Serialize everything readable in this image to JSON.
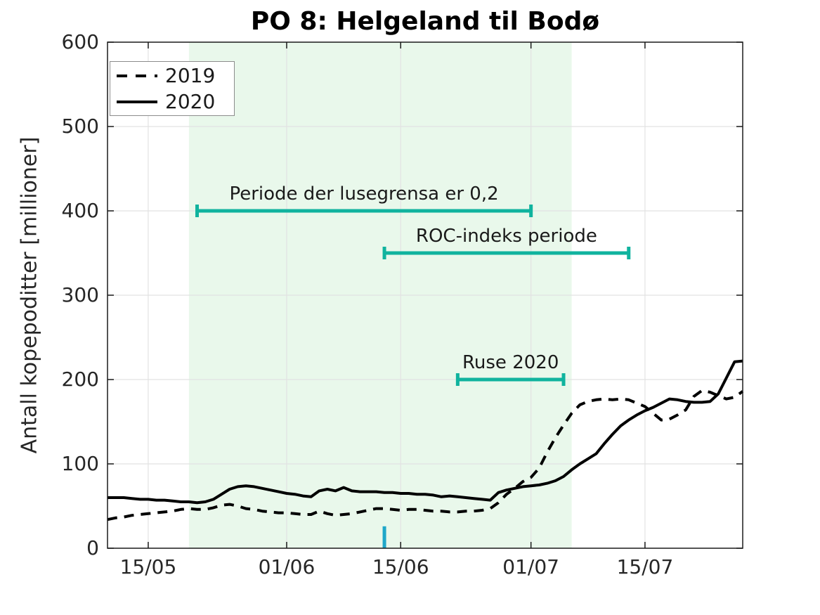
{
  "chart": {
    "title": "PO 8: Helgeland til Bodø",
    "ylabel": "Antall kopepoditter [millioner]"
  },
  "chart_data": {
    "type": "line",
    "title": "PO 8: Helgeland til Bodø",
    "xlabel": "",
    "ylabel": "Antall kopepoditter [millioner]",
    "ylim": [
      0,
      600
    ],
    "grid": true,
    "x_axis": {
      "unit": "day",
      "start_date": "10/05",
      "end_date": "27/07",
      "num_days": 78
    },
    "x_ticks": [
      {
        "label": "15/05",
        "day": 5
      },
      {
        "label": "01/06",
        "day": 22
      },
      {
        "label": "15/06",
        "day": 36
      },
      {
        "label": "01/07",
        "day": 52
      },
      {
        "label": "15/07",
        "day": 66
      }
    ],
    "y_ticks": [
      {
        "label": "0",
        "value": 0
      },
      {
        "label": "100",
        "value": 100
      },
      {
        "label": "200",
        "value": 200
      },
      {
        "label": "300",
        "value": 300
      },
      {
        "label": "400",
        "value": 400
      },
      {
        "label": "500",
        "value": 500
      },
      {
        "label": "600",
        "value": 600
      }
    ],
    "series": [
      {
        "name": "2019",
        "style": "dashed",
        "color": "#000000",
        "values": [
          34,
          36,
          37,
          39,
          40,
          41,
          42,
          43,
          44,
          46,
          47,
          46,
          46,
          48,
          51,
          52,
          50,
          47,
          46,
          44,
          43,
          42,
          42,
          41,
          40,
          40,
          44,
          41,
          39,
          40,
          41,
          43,
          45,
          47,
          47,
          46,
          45,
          46,
          46,
          45,
          44,
          44,
          43,
          43,
          44,
          44,
          45,
          47,
          54,
          64,
          71,
          79,
          84,
          95,
          114,
          131,
          146,
          160,
          170,
          174,
          176,
          177,
          176,
          177,
          176,
          172,
          168,
          160,
          152,
          153,
          158,
          164,
          180,
          187,
          185,
          181,
          177,
          179,
          186
        ]
      },
      {
        "name": "2020",
        "style": "solid",
        "color": "#000000",
        "values": [
          60,
          60,
          60,
          59,
          58,
          58,
          57,
          57,
          56,
          55,
          55,
          54,
          55,
          58,
          64,
          70,
          73,
          74,
          73,
          71,
          69,
          67,
          65,
          64,
          62,
          61,
          68,
          70,
          68,
          72,
          68,
          67,
          67,
          67,
          66,
          66,
          65,
          65,
          64,
          64,
          63,
          61,
          62,
          61,
          60,
          59,
          58,
          57,
          66,
          69,
          71,
          73,
          74,
          75,
          77,
          80,
          85,
          93,
          100,
          106,
          112,
          124,
          135,
          145,
          152,
          158,
          163,
          167,
          172,
          177,
          176,
          174,
          173,
          173,
          174,
          183,
          202,
          221,
          222
        ]
      }
    ],
    "shaded_region": {
      "day_start": 10,
      "day_end": 57,
      "date_start": "20/05",
      "date_end": "06/07",
      "color": "#E9F8EB"
    },
    "interval_annotations": [
      {
        "label": "Periode der lusegrensa er 0,2",
        "y": 400,
        "day_start": 11,
        "day_end": 52,
        "date_start": "21/05",
        "date_end": "01/07"
      },
      {
        "label": "ROC-indeks periode",
        "y": 350,
        "day_start": 34,
        "day_end": 64,
        "date_start": "13/06",
        "date_end": "13/07"
      },
      {
        "label": "Ruse 2020",
        "y": 200,
        "day_start": 43,
        "day_end": 56,
        "date_start": "22/06",
        "date_end": "05/07"
      }
    ],
    "axis_marker": {
      "day": 34,
      "date": "13/06",
      "height": 26,
      "color": "#1FA7C9"
    },
    "legend": {
      "position": "top-left",
      "items": [
        {
          "label": "2019",
          "style": "dashed"
        },
        {
          "label": "2020",
          "style": "solid"
        }
      ]
    },
    "colors": {
      "interval_bars": "#10B39E",
      "grid": "#E2E2E2",
      "axis": "#1a1a1a",
      "shade": "#E9F8EB",
      "lines": "#000000"
    }
  }
}
